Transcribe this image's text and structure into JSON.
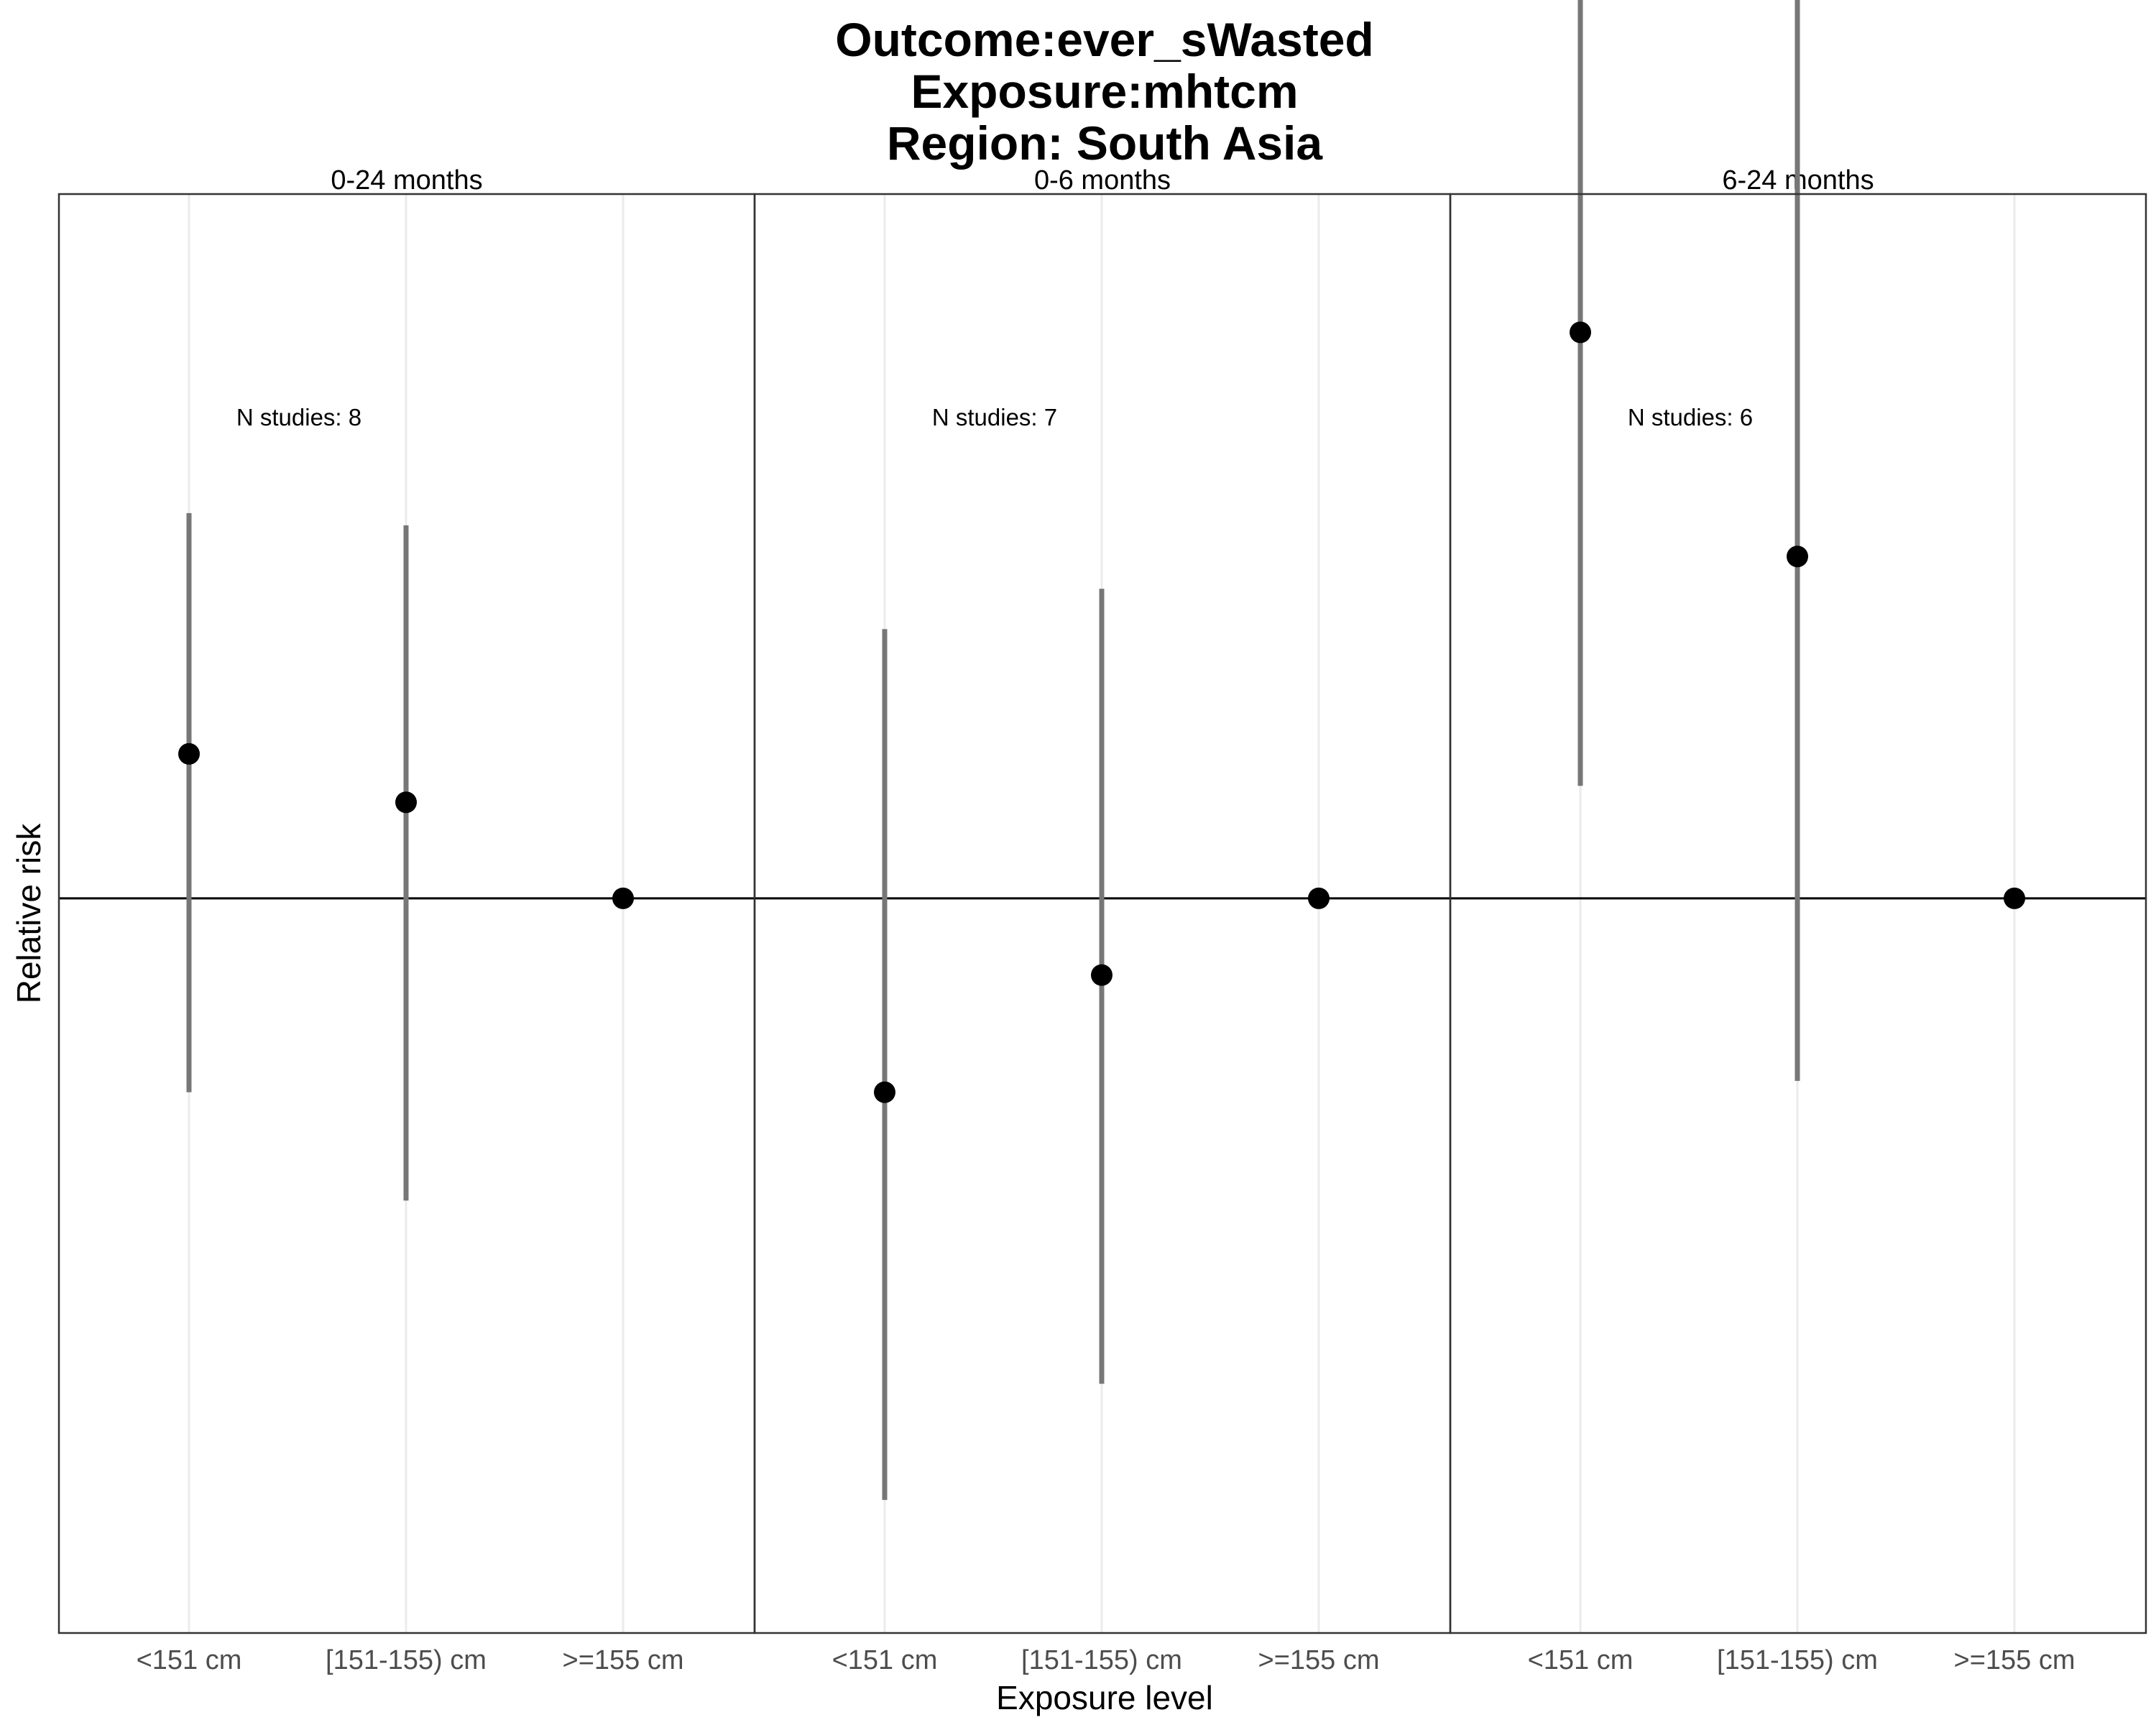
{
  "title_lines": [
    "Outcome:ever_sWasted",
    "Exposure:mhtcm",
    "Region: South Asia"
  ],
  "chart_data": {
    "type": "scatter",
    "subtype": "pointrange",
    "title": "Outcome:ever_sWasted\nExposure:mhtcm\nRegion: South Asia",
    "xlabel": "Exposure level",
    "ylabel": "Relative risk",
    "categories": [
      "<151 cm",
      "[151-155) cm",
      ">=155 cm"
    ],
    "reference_line": 1,
    "ylim": [
      0.45,
      2.15
    ],
    "y_scale": "log",
    "y_tick_labels_shown": false,
    "grid": "vertical-major",
    "facets": [
      {
        "label": "0-24 months",
        "n_studies_label": "N studies: 8",
        "points": [
          {
            "category": "<151 cm",
            "estimate": 1.17,
            "lower": 0.81,
            "upper": 1.52
          },
          {
            "category": "[151-155) cm",
            "estimate": 1.11,
            "lower": 0.72,
            "upper": 1.5
          },
          {
            "category": ">=155 cm",
            "estimate": 1.0,
            "lower": 1.0,
            "upper": 1.0
          }
        ]
      },
      {
        "label": "0-6 months",
        "n_studies_label": "N studies: 7",
        "points": [
          {
            "category": "<151 cm",
            "estimate": 0.81,
            "lower": 0.52,
            "upper": 1.34
          },
          {
            "category": "[151-155) cm",
            "estimate": 0.92,
            "lower": 0.59,
            "upper": 1.4
          },
          {
            "category": ">=155 cm",
            "estimate": 1.0,
            "lower": 1.0,
            "upper": 1.0
          }
        ]
      },
      {
        "label": "6-24 months",
        "n_studies_label": "N studies: 6",
        "points": [
          {
            "category": "<151 cm",
            "estimate": 1.85,
            "lower": 1.13,
            "upper": 3.4
          },
          {
            "category": "[151-155) cm",
            "estimate": 1.45,
            "lower": 0.82,
            "upper": 2.9
          },
          {
            "category": ">=155 cm",
            "estimate": 1.0,
            "lower": 1.0,
            "upper": 1.0
          }
        ]
      }
    ],
    "colors": {
      "point": "#000000",
      "interval": "#777777",
      "grid": "#ebebeb",
      "reference": "#000000",
      "panel_border": "#333333"
    }
  }
}
